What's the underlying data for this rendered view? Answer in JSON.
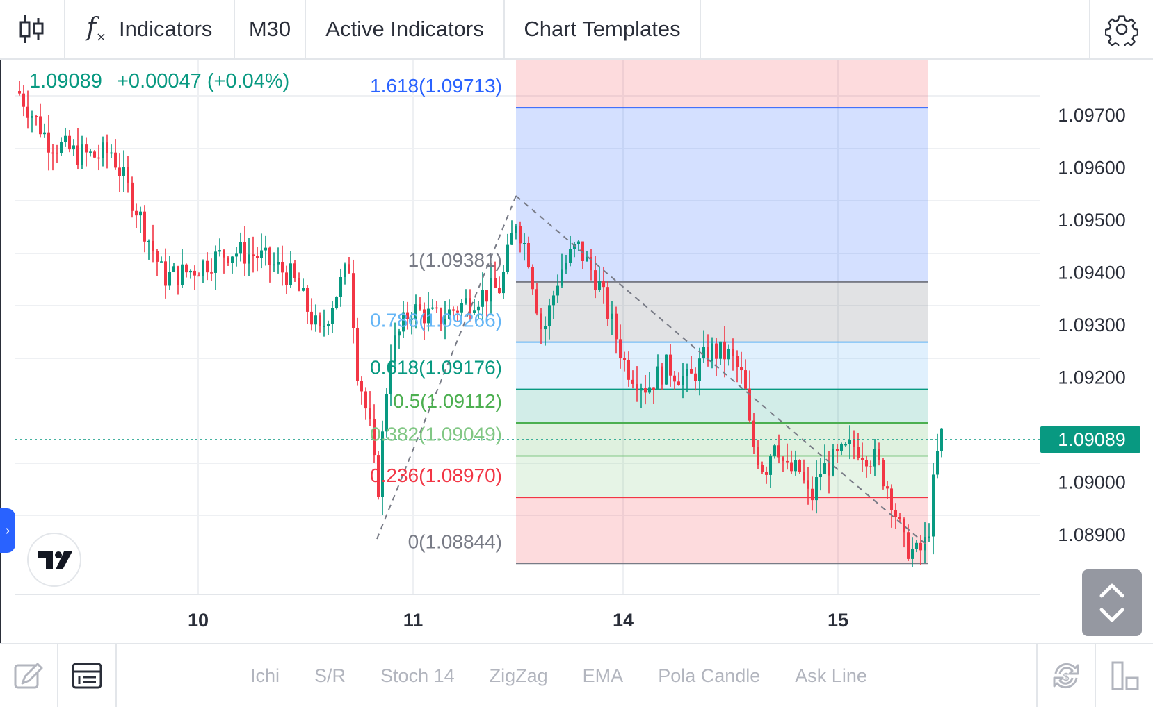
{
  "toolbar": {
    "indicators_label": "Indicators",
    "timeframe": "M30",
    "active_indicators_label": "Active Indicators",
    "chart_templates_label": "Chart Templates"
  },
  "legend": {
    "price": "1.09089",
    "change": "+0.00047 (+0.04%)"
  },
  "price_axis": {
    "ticks": [
      "1.09700",
      "1.09600",
      "1.09500",
      "1.09400",
      "1.09300",
      "1.09200",
      "1.09000",
      "1.08900"
    ],
    "current_price": "1.09089",
    "current_price_color": "#089981"
  },
  "time_axis": {
    "ticks": [
      "10",
      "11",
      "14",
      "15"
    ]
  },
  "fibonacci": {
    "levels": [
      {
        "label": "1.618(1.09713)",
        "ratio": 1.618,
        "price": 1.09713,
        "color": "#2962ff"
      },
      {
        "label": "1(1.09381)",
        "ratio": 1,
        "price": 1.09381,
        "color": "#787b86"
      },
      {
        "label": "0.786(1.09266)",
        "ratio": 0.786,
        "price": 1.09266,
        "color": "#64b5f6"
      },
      {
        "label": "0.618(1.09176)",
        "ratio": 0.618,
        "price": 1.09176,
        "color": "#089981"
      },
      {
        "label": "0.5(1.09112)",
        "ratio": 0.5,
        "price": 1.09112,
        "color": "#4caf50"
      },
      {
        "label": "0.382(1.09049)",
        "ratio": 0.382,
        "price": 1.09049,
        "color": "#81c784"
      },
      {
        "label": "0.236(1.08970)",
        "ratio": 0.236,
        "price": 1.0897,
        "color": "#f23645"
      },
      {
        "label": "0(1.08844)",
        "ratio": 0,
        "price": 1.08844,
        "color": "#787b86"
      }
    ]
  },
  "colors": {
    "up": "#089981",
    "down": "#f23645",
    "grid": "#eef0f3",
    "text": "#2a2e39"
  },
  "quick_indicators": [
    "Ichi",
    "S/R",
    "Stoch 14",
    "ZigZag",
    "EMA",
    "Pola Candle",
    "Ask Line"
  ],
  "icons": {
    "chart_type": "candlestick-icon",
    "indicators": "function-icon",
    "settings": "gear-icon",
    "logo": "tradingview-logo",
    "drawing": "pencil-icon",
    "object_tree": "object-tree-icon",
    "sync": "sync-dollar-icon",
    "layout": "layout-icon",
    "scale": "chevron-up-down-icon"
  }
}
